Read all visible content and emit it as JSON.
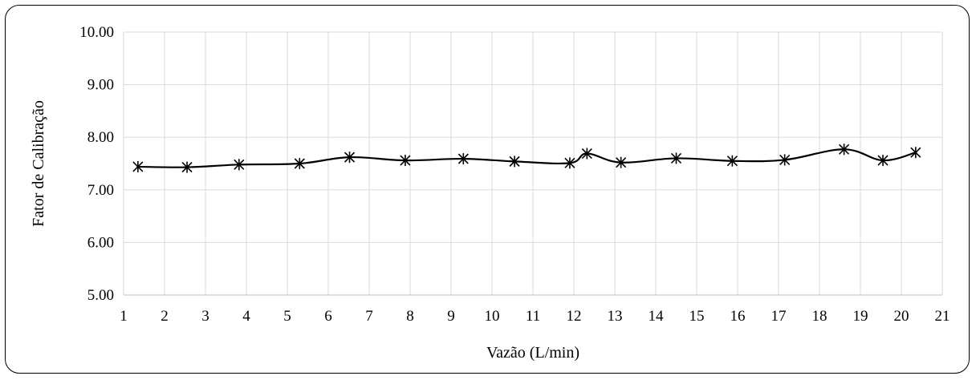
{
  "chart_data": {
    "type": "line",
    "title": "",
    "xlabel": "Vazão (L/min)",
    "ylabel": "Fator de Calibração",
    "xlim": [
      1,
      21
    ],
    "ylim": [
      5,
      10
    ],
    "x_ticks": [
      "1",
      "2",
      "3",
      "4",
      "5",
      "6",
      "7",
      "8",
      "9",
      "10",
      "11",
      "12",
      "13",
      "14",
      "15",
      "16",
      "17",
      "18",
      "19",
      "20",
      "21"
    ],
    "y_ticks": [
      "5.00",
      "6.00",
      "7.00",
      "8.00",
      "9.00",
      "10.00"
    ],
    "grid": true,
    "legend": "none",
    "marker": "asterisk",
    "line_color": "#000000",
    "series": [
      {
        "x": [
          1.35,
          2.55,
          3.82,
          5.3,
          6.52,
          7.88,
          9.3,
          10.55,
          11.9,
          12.32,
          13.15,
          14.5,
          15.87,
          17.15,
          18.6,
          19.55,
          20.35
        ],
        "y": [
          7.44,
          7.43,
          7.48,
          7.5,
          7.62,
          7.56,
          7.59,
          7.54,
          7.51,
          7.69,
          7.52,
          7.6,
          7.55,
          7.57,
          7.77,
          7.56,
          7.71
        ]
      }
    ]
  }
}
